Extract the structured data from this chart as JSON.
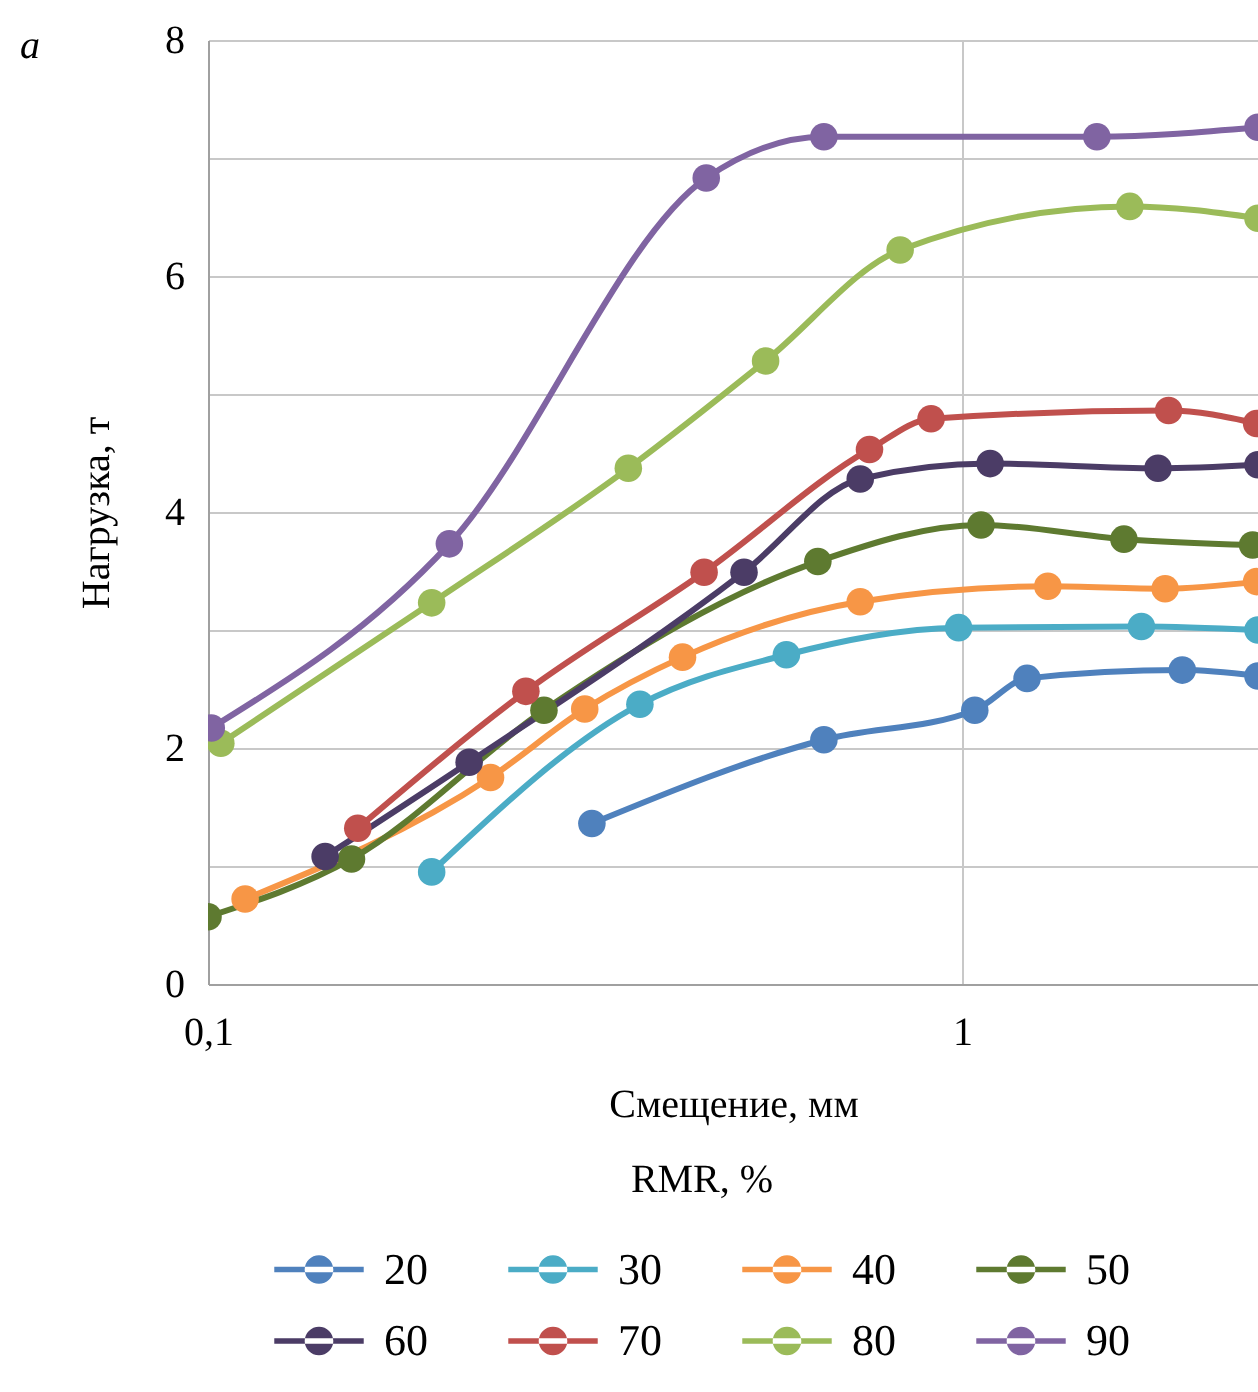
{
  "chart_data": {
    "type": "line",
    "xlabel": "Смещение, мм",
    "ylabel": "Нагрузка, т",
    "legend_title": "RMR, %",
    "annotations": [
      "a"
    ],
    "log": "x",
    "xlim": [
      0.1,
      2.47
    ],
    "xticks": [
      {
        "value": 0.1,
        "label": "0,1"
      },
      1
    ],
    "ylim": [
      0,
      8
    ],
    "yticks": [
      0,
      {
        "value": 1,
        "label": null
      },
      2,
      {
        "value": 3,
        "label": null
      },
      4,
      {
        "value": 5,
        "label": null
      },
      6,
      {
        "value": 7,
        "label": null
      },
      8
    ],
    "grid": true,
    "legend": "bottom",
    "marker": "circle",
    "line_style": "solid",
    "series": [
      {
        "name": "20",
        "color": "#4f81bd",
        "x": [
          0.323,
          0.656,
          1.04,
          1.22,
          1.96,
          2.47
        ],
        "values": [
          1.36,
          2.07,
          2.32,
          2.59,
          2.66,
          2.61
        ]
      },
      {
        "name": "30",
        "color": "#4bacc6",
        "x": [
          0.198,
          0.374,
          0.585,
          0.99,
          1.73,
          2.47
        ],
        "values": [
          0.95,
          2.37,
          2.79,
          3.02,
          3.03,
          3.0
        ]
      },
      {
        "name": "40",
        "color": "#f79646",
        "x": [
          0.112,
          0.237,
          0.316,
          0.426,
          0.733,
          1.3,
          1.86,
          2.46
        ],
        "values": [
          0.72,
          1.75,
          2.33,
          2.77,
          3.24,
          3.37,
          3.35,
          3.41
        ]
      },
      {
        "name": "50",
        "color": "#5e7a30",
        "x": [
          0.1,
          0.155,
          0.279,
          0.644,
          1.06,
          1.64,
          2.43
        ],
        "values": [
          0.57,
          1.06,
          2.32,
          3.58,
          3.89,
          3.77,
          3.72
        ]
      },
      {
        "name": "60",
        "color": "#4b3c66",
        "x": [
          0.143,
          0.222,
          0.514,
          0.733,
          1.09,
          1.82,
          2.47
        ],
        "values": [
          1.08,
          1.88,
          3.49,
          4.28,
          4.41,
          4.37,
          4.4
        ]
      },
      {
        "name": "70",
        "color": "#c0504d",
        "x": [
          0.158,
          0.264,
          0.455,
          0.754,
          0.91,
          1.88,
          2.46
        ],
        "values": [
          1.32,
          2.48,
          3.49,
          4.53,
          4.79,
          4.86,
          4.75
        ]
      },
      {
        "name": "80",
        "color": "#9bbb59",
        "x": [
          0.104,
          0.198,
          0.361,
          0.549,
          0.828,
          1.67,
          2.47
        ],
        "values": [
          2.04,
          3.23,
          4.37,
          5.28,
          6.22,
          6.59,
          6.49
        ]
      },
      {
        "name": "90",
        "color": "#8064a2",
        "x": [
          0.101,
          0.209,
          0.458,
          0.656,
          1.51,
          2.47
        ],
        "values": [
          2.17,
          3.73,
          6.83,
          7.18,
          7.18,
          7.26
        ]
      }
    ]
  }
}
